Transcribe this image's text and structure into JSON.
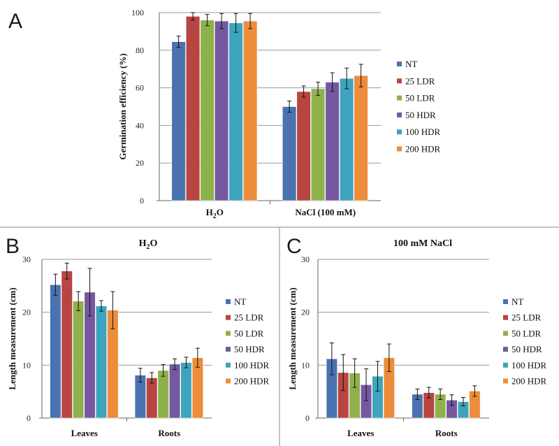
{
  "colors": {
    "NT": "#4a72b0",
    "25 LDR": "#b84542",
    "50 LDR": "#8fb14b",
    "50 HDR": "#7558a0",
    "100 HDR": "#3ea4bd",
    "200 HDR": "#ed8c3a",
    "grid": "#9a9a9a",
    "axis": "#666666"
  },
  "chart_data": [
    {
      "panel": "A",
      "type": "bar",
      "title": "",
      "categories": [
        "H2O",
        "NaCl  (100 mM)"
      ],
      "ylabel": "Germination efficiency (%)",
      "ylim": [
        0,
        100
      ],
      "yticks": [
        0,
        20,
        40,
        60,
        80,
        100
      ],
      "grid": true,
      "legend": "right",
      "series": [
        {
          "name": "NT",
          "values": [
            84.5,
            50.0
          ],
          "errors": [
            3.0,
            3.0
          ]
        },
        {
          "name": "25 LDR",
          "values": [
            98.0,
            58.0
          ],
          "errors": [
            2.0,
            3.0
          ]
        },
        {
          "name": "50 LDR",
          "values": [
            96.0,
            59.5
          ],
          "errors": [
            3.0,
            3.5
          ]
        },
        {
          "name": "50 HDR",
          "values": [
            95.5,
            63.0
          ],
          "errors": [
            4.0,
            5.0
          ]
        },
        {
          "name": "100 HDR",
          "values": [
            94.5,
            65.0
          ],
          "errors": [
            5.0,
            5.5
          ]
        },
        {
          "name": "200 HDR",
          "values": [
            95.5,
            66.5
          ],
          "errors": [
            4.0,
            6.0
          ]
        }
      ]
    },
    {
      "panel": "B",
      "type": "bar",
      "title": "H2O",
      "categories": [
        "Leaves",
        "Roots"
      ],
      "ylabel": "Length measurement  (cm)",
      "ylim": [
        0,
        30
      ],
      "yticks": [
        0,
        10,
        20,
        30
      ],
      "grid": true,
      "legend": "right",
      "series": [
        {
          "name": "NT",
          "values": [
            25.2,
            8.1
          ],
          "errors": [
            2.0,
            1.3
          ]
        },
        {
          "name": "25 LDR",
          "values": [
            27.8,
            7.6
          ],
          "errors": [
            1.5,
            1.0
          ]
        },
        {
          "name": "50 LDR",
          "values": [
            22.1,
            9.0
          ],
          "errors": [
            1.8,
            1.1
          ]
        },
        {
          "name": "50 HDR",
          "values": [
            23.8,
            10.2
          ],
          "errors": [
            4.5,
            1.0
          ]
        },
        {
          "name": "100 HDR",
          "values": [
            21.2,
            10.5
          ],
          "errors": [
            1.0,
            1.0
          ]
        },
        {
          "name": "200 HDR",
          "values": [
            20.4,
            11.4
          ],
          "errors": [
            3.5,
            1.8
          ]
        }
      ]
    },
    {
      "panel": "C",
      "type": "bar",
      "title": "100 mM NaCl",
      "categories": [
        "Leaves",
        "Roots"
      ],
      "ylabel": "Length measurement  (cm)",
      "ylim": [
        0,
        30
      ],
      "yticks": [
        0,
        10,
        20,
        30
      ],
      "grid": true,
      "legend": "right",
      "series": [
        {
          "name": "NT",
          "values": [
            11.2,
            4.5
          ],
          "errors": [
            3.0,
            1.0
          ]
        },
        {
          "name": "25 LDR",
          "values": [
            8.6,
            4.8
          ],
          "errors": [
            3.4,
            1.0
          ]
        },
        {
          "name": "50 LDR",
          "values": [
            8.5,
            4.5
          ],
          "errors": [
            2.7,
            1.0
          ]
        },
        {
          "name": "50 HDR",
          "values": [
            6.3,
            3.4
          ],
          "errors": [
            3.0,
            1.0
          ]
        },
        {
          "name": "100 HDR",
          "values": [
            7.9,
            3.1
          ],
          "errors": [
            2.8,
            0.8
          ]
        },
        {
          "name": "200 HDR",
          "values": [
            11.4,
            5.1
          ],
          "errors": [
            2.6,
            1.0
          ]
        }
      ]
    }
  ]
}
